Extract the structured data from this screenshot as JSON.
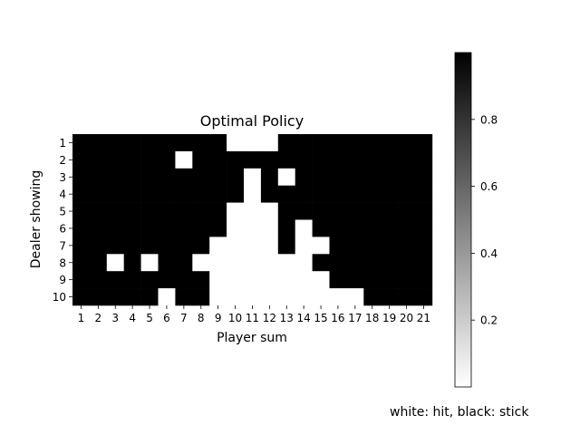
{
  "chart_data": {
    "type": "heatmap",
    "title": "Optimal Policy",
    "xlabel": "Player sum",
    "ylabel": "Dealer showing",
    "x_ticks": [
      "1",
      "2",
      "3",
      "4",
      "5",
      "6",
      "7",
      "8",
      "9",
      "10",
      "11",
      "12",
      "13",
      "14",
      "15",
      "16",
      "17",
      "18",
      "19",
      "20",
      "21"
    ],
    "y_ticks": [
      "1",
      "2",
      "3",
      "4",
      "5",
      "6",
      "7",
      "8",
      "9",
      "10"
    ],
    "colormap": "gray_r",
    "value_range": [
      0,
      1
    ],
    "colorbar": {
      "ticks": [
        0.2,
        0.4,
        0.6,
        0.8
      ],
      "tick_labels": [
        "0.2",
        "0.4",
        "0.6",
        "0.8"
      ],
      "range": [
        0,
        1
      ],
      "placement": "right"
    },
    "annotation": "white: hit, black: stick",
    "values": [
      [
        1,
        1,
        1,
        1,
        1,
        1,
        1,
        1,
        1,
        0,
        0,
        0,
        1,
        1,
        1,
        1,
        1,
        1,
        1,
        1,
        1
      ],
      [
        1,
        1,
        1,
        1,
        1,
        1,
        0,
        1,
        1,
        1,
        1,
        1,
        1,
        1,
        1,
        1,
        1,
        1,
        1,
        1,
        1
      ],
      [
        1,
        1,
        1,
        1,
        1,
        1,
        1,
        1,
        1,
        1,
        0,
        1,
        0,
        1,
        1,
        1,
        1,
        1,
        1,
        1,
        1
      ],
      [
        1,
        1,
        1,
        1,
        1,
        1,
        1,
        1,
        1,
        1,
        0,
        1,
        1,
        1,
        1,
        1,
        1,
        1,
        1,
        1,
        1
      ],
      [
        1,
        1,
        1,
        1,
        1,
        1,
        1,
        1,
        1,
        0,
        0,
        0,
        1,
        1,
        1,
        1,
        1,
        1,
        1,
        1,
        1
      ],
      [
        1,
        1,
        1,
        1,
        1,
        1,
        1,
        1,
        1,
        0,
        0,
        0,
        1,
        0,
        1,
        1,
        1,
        1,
        1,
        1,
        1
      ],
      [
        1,
        1,
        1,
        1,
        1,
        1,
        1,
        1,
        0,
        0,
        0,
        0,
        1,
        0,
        0,
        1,
        1,
        1,
        1,
        1,
        1
      ],
      [
        1,
        1,
        0,
        1,
        0,
        1,
        1,
        0,
        0,
        0,
        0,
        0,
        0,
        0,
        1,
        1,
        1,
        1,
        1,
        1,
        1
      ],
      [
        1,
        1,
        1,
        1,
        1,
        1,
        1,
        1,
        0,
        0,
        0,
        0,
        0,
        0,
        0,
        1,
        1,
        1,
        1,
        1,
        1
      ],
      [
        1,
        1,
        1,
        1,
        1,
        0,
        1,
        1,
        0,
        0,
        0,
        0,
        0,
        0,
        0,
        0,
        0,
        1,
        1,
        1,
        1
      ]
    ]
  }
}
